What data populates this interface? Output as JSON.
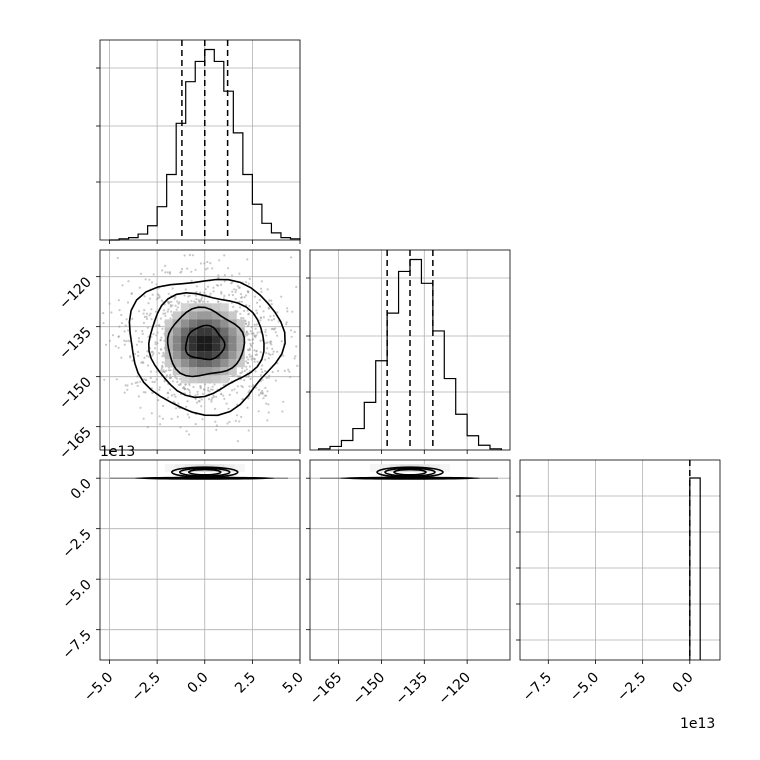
{
  "chart_data": {
    "type": "corner",
    "parameters": 3,
    "panels": [
      {
        "id": "hist-p1",
        "type": "histogram",
        "x_range": [
          -5.5,
          5.0
        ],
        "x_ticks": [
          -5.0,
          -2.5,
          0.0,
          2.5,
          5.0
        ],
        "bins_x": [
          -5.0,
          -4.5,
          -4.0,
          -3.5,
          -3.0,
          -2.5,
          -2.0,
          -1.5,
          -1.0,
          -0.5,
          0.0,
          0.5,
          1.0,
          1.5,
          2.0,
          2.5,
          3.0,
          3.5,
          4.0,
          4.5
        ],
        "bin_width": 0.5,
        "counts": [
          0,
          1,
          2,
          5,
          12,
          28,
          55,
          98,
          133,
          150,
          160,
          150,
          125,
          90,
          55,
          30,
          14,
          6,
          2,
          1
        ],
        "quantiles": [
          -1.2,
          0.0,
          1.2
        ]
      },
      {
        "id": "hist2d-p1-p2",
        "type": "2d-hist",
        "x_range": [
          -5.5,
          5.0
        ],
        "y_range": [
          -172,
          -112
        ],
        "x_ticks": [
          -5.0,
          -2.5,
          0.0,
          2.5,
          5.0
        ],
        "y_ticks": [
          -120,
          -135,
          -150,
          -165
        ],
        "y_tick_labels": [
          "−120",
          "−135",
          "−150",
          "−165"
        ],
        "center": [
          0.0,
          -140
        ],
        "spread": [
          1.3,
          6.5
        ],
        "contour_levels_sigma": [
          0.5,
          1.0,
          1.5,
          2.0
        ]
      },
      {
        "id": "hist-p2",
        "type": "histogram",
        "x_range": [
          -175,
          -105
        ],
        "x_ticks": [
          -165,
          -150,
          -135,
          -120
        ],
        "x_tick_labels": [
          "−165",
          "−150",
          "−135",
          "−120"
        ],
        "bins_x": [
          -172,
          -168,
          -164,
          -160,
          -156,
          -152,
          -148,
          -144,
          -140,
          -136,
          -132,
          -128,
          -124,
          -120,
          -116,
          -112
        ],
        "bin_width": 4,
        "counts": [
          1,
          3,
          8,
          18,
          40,
          75,
          115,
          150,
          160,
          140,
          100,
          60,
          30,
          12,
          4,
          1
        ],
        "quantiles": [
          -148,
          -140,
          -132
        ]
      },
      {
        "id": "hist2d-p1-p3",
        "type": "2d-hist",
        "x_range": [
          -5.5,
          5.0
        ],
        "y_range": [
          -9.0,
          0.9
        ],
        "y_ticks": [
          0.0,
          -2.5,
          -5.0,
          -7.5
        ],
        "y_tick_labels": [
          "0.0",
          "−2.5",
          "−5.0",
          "−7.5"
        ],
        "y_offset_label": "1e13",
        "x_ticks": [
          -5.0,
          -2.5,
          0.0,
          2.5,
          5.0
        ],
        "x_tick_labels": [
          "−5.0",
          "−2.5",
          "0.0",
          "2.5",
          "5.0"
        ],
        "center": [
          0.0,
          0.3
        ],
        "band_y": 0.0
      },
      {
        "id": "hist2d-p2-p3",
        "type": "2d-hist",
        "x_range": [
          -175,
          -105
        ],
        "y_range": [
          -9.0,
          0.9
        ],
        "x_ticks": [
          -165,
          -150,
          -135,
          -120
        ],
        "x_tick_labels": [
          "−165",
          "−150",
          "−135",
          "−120"
        ],
        "center": [
          -140,
          0.3
        ],
        "band_y": 0.0
      },
      {
        "id": "hist-p3",
        "type": "histogram",
        "x_range": [
          -9.0,
          1.6
        ],
        "x_ticks": [
          -7.5,
          -5.0,
          -2.5,
          0.0
        ],
        "x_tick_labels": [
          "−7.5",
          "−5.0",
          "−2.5",
          "0.0"
        ],
        "x_offset_label": "1e13",
        "bins_x": [
          0.0
        ],
        "bin_width": 0.55,
        "counts": [
          1
        ],
        "quantiles": [
          0.0,
          0.0,
          0.0
        ]
      }
    ]
  }
}
